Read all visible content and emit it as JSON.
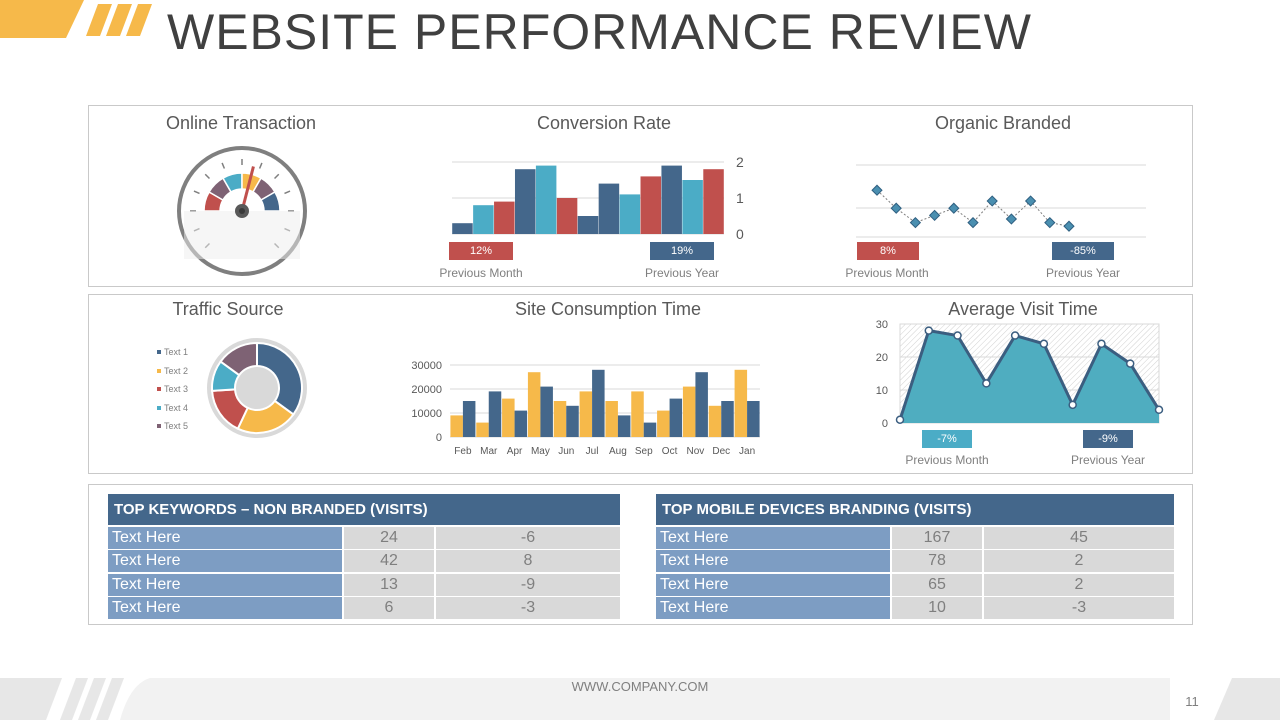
{
  "header": {
    "title": "WEBSITE PERFORMANCE REVIEW"
  },
  "colors": {
    "navy": "#44678b",
    "teal": "#4bacc6",
    "red": "#c0504d",
    "yellow": "#f6b94a",
    "purple": "#7e6274",
    "table_label": "#7d9dc3",
    "table_cell": "#d9d9d9"
  },
  "online_transaction": {
    "title": "Online Transaction",
    "icon": "speedometer-gauge-icon"
  },
  "conversion_rate": {
    "title": "Conversion Rate",
    "badge_left": "12%",
    "badge_right": "19%",
    "caption_left": "Previous Month",
    "caption_right": "Previous Year"
  },
  "organic_branded": {
    "title": "Organic Branded",
    "badge_left": "8%",
    "badge_right": "-85%",
    "caption_left": "Previous Month",
    "caption_right": "Previous Year"
  },
  "traffic_source": {
    "title": "Traffic Source",
    "legend": [
      "Text 1",
      "Text 2",
      "Text 3",
      "Text 4",
      "Text 5"
    ]
  },
  "site_consumption": {
    "title": "Site Consumption Time"
  },
  "average_visit": {
    "title": "Average Visit Time",
    "badge_left": "-7%",
    "badge_right": "-9%",
    "caption_left": "Previous Month",
    "caption_right": "Previous Year"
  },
  "chart_data": [
    {
      "id": "conversion_rate",
      "type": "bar",
      "title": "Conversion Rate",
      "ylim": [
        0,
        2
      ],
      "yticks": [
        "0",
        "1",
        "2"
      ],
      "grid": true,
      "values": [
        0.3,
        0.8,
        0.9,
        1.8,
        1.9,
        1.0,
        0.5,
        1.4,
        1.1,
        1.6,
        1.9,
        1.5,
        1.8
      ],
      "bar_colors": [
        "navy",
        "teal",
        "red",
        "navy",
        "teal",
        "red",
        "navy",
        "navy",
        "teal",
        "red",
        "navy",
        "teal",
        "red"
      ]
    },
    {
      "id": "organic_branded",
      "type": "line",
      "title": "Organic Branded",
      "grid": true,
      "ylim": [
        0,
        2
      ],
      "values": [
        1.3,
        0.8,
        0.4,
        0.6,
        0.8,
        0.4,
        1.0,
        0.5,
        1.0,
        0.4,
        0.3
      ]
    },
    {
      "id": "online_transaction",
      "type": "gauge",
      "title": "Online Transaction",
      "segments": [
        {
          "color": "red",
          "value": 1
        },
        {
          "color": "purple",
          "value": 1
        },
        {
          "color": "teal",
          "value": 1
        },
        {
          "color": "yellow",
          "value": 1
        },
        {
          "color": "purple",
          "value": 1
        },
        {
          "color": "navy",
          "value": 1
        }
      ],
      "needle_fraction": 0.58
    },
    {
      "id": "traffic_source",
      "type": "pie",
      "title": "Traffic Source",
      "labels": [
        "Text 1",
        "Text 2",
        "Text 3",
        "Text 4",
        "Text 5"
      ],
      "values": [
        35,
        22,
        17,
        11,
        15
      ],
      "colors": [
        "navy",
        "yellow",
        "red",
        "teal",
        "purple"
      ]
    },
    {
      "id": "site_consumption",
      "type": "bar",
      "title": "Site Consumption Time",
      "categories": [
        "Feb",
        "Mar",
        "Apr",
        "May",
        "Jun",
        "Jul",
        "Aug",
        "Sep",
        "Oct",
        "Nov",
        "Dec",
        "Jan"
      ],
      "ylim": [
        0,
        30000
      ],
      "yticks": [
        "0",
        "10000",
        "20000",
        "30000"
      ],
      "grid": true,
      "series": [
        {
          "color": "yellow",
          "values": [
            9000,
            6000,
            16000,
            27000,
            15000,
            19000,
            15000,
            19000,
            11000,
            21000,
            13000,
            28000
          ]
        },
        {
          "color": "navy",
          "values": [
            15000,
            19000,
            11000,
            21000,
            13000,
            28000,
            9000,
            6000,
            16000,
            27000,
            15000,
            15000
          ]
        }
      ]
    },
    {
      "id": "average_visit",
      "type": "area",
      "title": "Average Visit Time",
      "ylim": [
        0,
        30
      ],
      "yticks": [
        "0",
        "10",
        "20",
        "30"
      ],
      "grid": true,
      "values": [
        1,
        28,
        26.5,
        12,
        26.5,
        24,
        5.5,
        24,
        18,
        4
      ]
    },
    {
      "id": "top_keywords",
      "type": "table",
      "title": "TOP KEYWORDS – NON BRANDED (VISITS)",
      "rows": [
        [
          "Text Here",
          "24",
          "-6"
        ],
        [
          "Text Here",
          "42",
          "8"
        ],
        [
          "Text Here",
          "13",
          "-9"
        ],
        [
          "Text Here",
          "6",
          "-3"
        ]
      ]
    },
    {
      "id": "top_mobile",
      "type": "table",
      "title": "TOP MOBILE DEVICES BRANDING (VISITS)",
      "rows": [
        [
          "Text Here",
          "167",
          "45"
        ],
        [
          "Text Here",
          "78",
          "2"
        ],
        [
          "Text Here",
          "65",
          "2"
        ],
        [
          "Text Here",
          "10",
          "-3"
        ]
      ]
    }
  ],
  "footer": {
    "url": "WWW.COMPANY.COM",
    "page_number": "11"
  }
}
